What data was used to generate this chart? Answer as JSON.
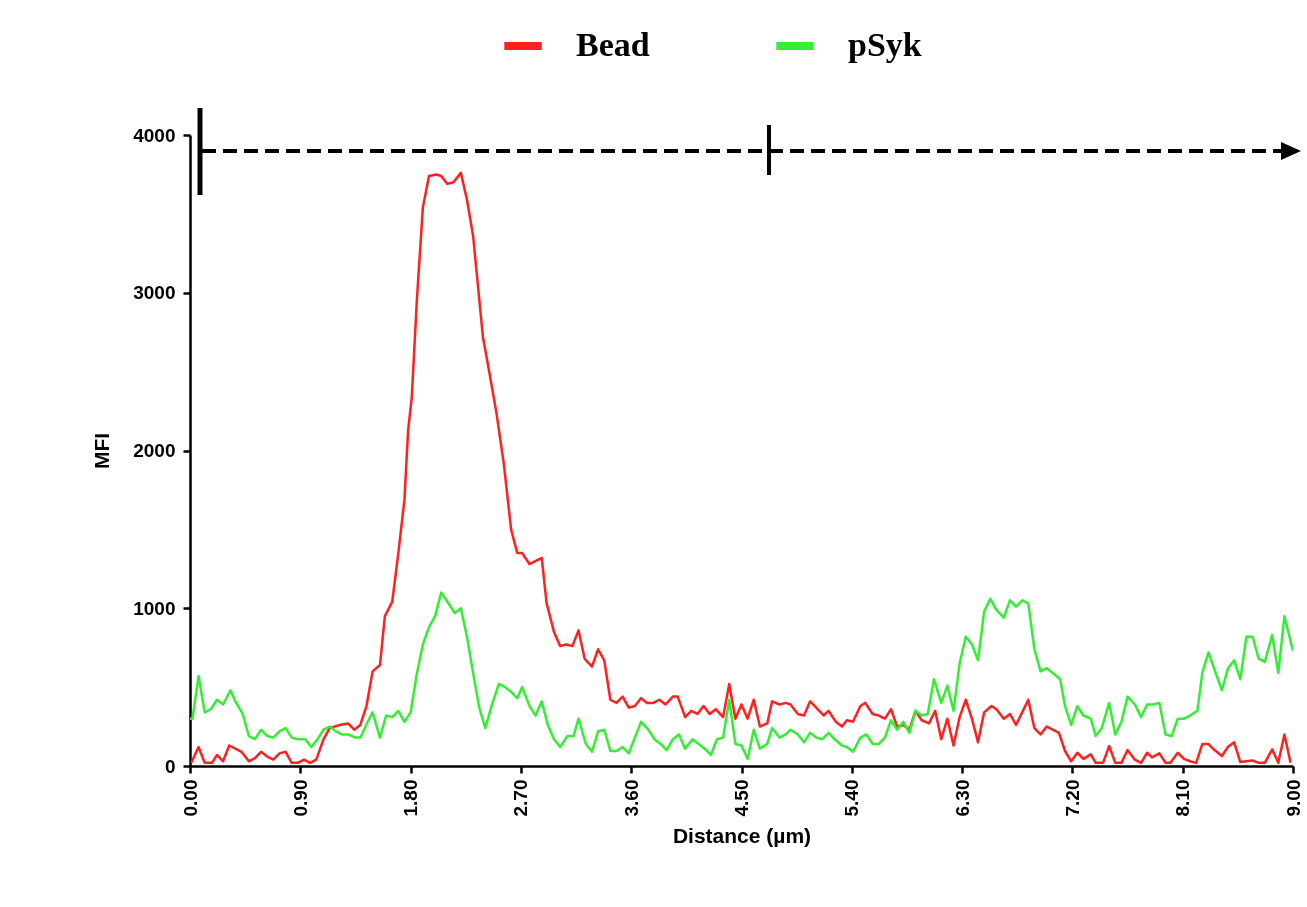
{
  "chart_data": {
    "type": "line",
    "xlabel": "Distance (µm)",
    "ylabel": "MFI",
    "legend": "top",
    "xlim": [
      0,
      9
    ],
    "ylim": [
      0,
      4000
    ],
    "xticks": [
      {
        "value": 0,
        "label": "0.00"
      },
      {
        "value": 0.9,
        "label": "0.90"
      },
      {
        "value": 1.8,
        "label": "1.80"
      },
      {
        "value": 2.7,
        "label": "2.70"
      },
      {
        "value": 3.6,
        "label": "3.60"
      },
      {
        "value": 4.5,
        "label": "4.50"
      },
      {
        "value": 5.4,
        "label": "5.40"
      },
      {
        "value": 6.3,
        "label": "6.30"
      },
      {
        "value": 7.2,
        "label": "7.20"
      },
      {
        "value": 8.1,
        "label": "8.10"
      },
      {
        "value": 9,
        "label": "9.00"
      }
    ],
    "yticks": [
      0,
      1000,
      2000,
      3000,
      4000
    ],
    "series": [
      {
        "name": "Bead",
        "color": "#ff2020",
        "x": [
          0.01,
          0.07,
          0.12,
          0.18,
          0.22,
          0.27,
          0.32,
          0.42,
          0.48,
          0.53,
          0.58,
          0.63,
          0.68,
          0.73,
          0.78,
          0.83,
          0.88,
          0.93,
          0.98,
          1.03,
          1.09,
          1.14,
          1.22,
          1.29,
          1.34,
          1.39,
          1.44,
          1.49,
          1.55,
          1.59,
          1.65,
          1.7,
          1.75,
          1.78,
          1.81,
          1.85,
          1.9,
          1.95,
          2.01,
          2.05,
          2.1,
          2.15,
          2.21,
          2.26,
          2.31,
          2.39,
          2.43,
          2.5,
          2.56,
          2.62,
          2.67,
          2.71,
          2.77,
          2.87,
          2.91,
          2.97,
          3.02,
          3.07,
          3.12,
          3.17,
          3.22,
          3.28,
          3.33,
          3.38,
          3.43,
          3.48,
          3.53,
          3.58,
          3.63,
          3.68,
          3.73,
          3.78,
          3.83,
          3.88,
          3.94,
          3.98,
          4.04,
          4.09,
          4.14,
          4.19,
          4.24,
          4.29,
          4.35,
          4.4,
          4.45,
          4.5,
          4.55,
          4.6,
          4.65,
          4.71,
          4.75,
          4.81,
          4.86,
          4.9,
          4.96,
          5.01,
          5.06,
          5.11,
          5.17,
          5.21,
          5.27,
          5.32,
          5.36,
          5.41,
          5.47,
          5.51,
          5.57,
          5.62,
          5.67,
          5.72,
          5.77,
          5.82,
          5.87,
          5.92,
          5.97,
          6.03,
          6.08,
          6.13,
          6.18,
          6.23,
          6.28,
          6.33,
          6.38,
          6.43,
          6.48,
          6.54,
          6.58,
          6.64,
          6.69,
          6.74,
          6.79,
          6.84,
          6.89,
          6.94,
          6.99,
          7.04,
          7.09,
          7.14,
          7.19,
          7.24,
          7.29,
          7.35,
          7.39,
          7.45,
          7.5,
          7.55,
          7.6,
          7.65,
          7.71,
          7.76,
          7.81,
          7.85,
          7.91,
          7.96,
          8.0,
          8.06,
          8.11,
          8.16,
          8.21,
          8.26,
          8.31,
          8.36,
          8.42,
          8.47,
          8.52,
          8.57,
          8.62,
          8.67,
          8.72,
          8.77,
          8.83,
          8.88,
          8.93,
          8.98
        ],
        "values": [
          20,
          120,
          20,
          20,
          70,
          30,
          130,
          90,
          30,
          50,
          90,
          60,
          40,
          80,
          90,
          20,
          20,
          40,
          20,
          40,
          170,
          240,
          260,
          270,
          230,
          260,
          380,
          600,
          640,
          950,
          1040,
          1350,
          1690,
          2130,
          2340,
          2940,
          3540,
          3740,
          3750,
          3740,
          3690,
          3700,
          3760,
          3590,
          3360,
          2720,
          2550,
          2240,
          1920,
          1500,
          1350,
          1350,
          1280,
          1320,
          1030,
          850,
          760,
          770,
          760,
          860,
          680,
          630,
          740,
          670,
          420,
          400,
          440,
          370,
          380,
          430,
          400,
          400,
          420,
          390,
          440,
          440,
          310,
          350,
          330,
          380,
          330,
          360,
          310,
          520,
          300,
          390,
          300,
          420,
          250,
          270,
          410,
          390,
          400,
          390,
          330,
          320,
          410,
          370,
          320,
          350,
          280,
          250,
          290,
          280,
          380,
          400,
          330,
          320,
          300,
          360,
          250,
          260,
          230,
          350,
          290,
          270,
          350,
          170,
          300,
          130,
          310,
          420,
          300,
          150,
          340,
          380,
          360,
          300,
          330,
          260,
          340,
          420,
          240,
          200,
          250,
          230,
          210,
          95,
          30,
          84,
          45,
          74,
          20,
          20,
          127,
          20,
          20,
          101,
          40,
          20,
          84,
          55,
          80,
          20,
          20,
          84,
          45,
          30,
          20,
          139,
          139,
          101,
          63,
          122,
          150,
          25,
          30,
          35,
          20,
          20,
          106,
          20,
          200,
          20
        ]
      },
      {
        "name": "pSyk",
        "color": "#33ee33",
        "x": [
          0.0,
          0.02,
          0.07,
          0.12,
          0.17,
          0.22,
          0.27,
          0.33,
          0.37,
          0.43,
          0.48,
          0.53,
          0.58,
          0.63,
          0.68,
          0.73,
          0.78,
          0.83,
          0.88,
          0.94,
          0.99,
          1.04,
          1.09,
          1.14,
          1.19,
          1.24,
          1.29,
          1.35,
          1.39,
          1.45,
          1.49,
          1.55,
          1.6,
          1.65,
          1.7,
          1.75,
          1.8,
          1.85,
          1.9,
          1.95,
          2.0,
          2.05,
          2.11,
          2.16,
          2.21,
          2.26,
          2.31,
          2.36,
          2.41,
          2.46,
          2.52,
          2.57,
          2.62,
          2.67,
          2.71,
          2.77,
          2.82,
          2.87,
          2.92,
          2.97,
          3.02,
          3.08,
          3.13,
          3.17,
          3.23,
          3.28,
          3.33,
          3.38,
          3.43,
          3.48,
          3.53,
          3.58,
          3.68,
          3.74,
          3.79,
          3.84,
          3.89,
          3.94,
          3.99,
          4.04,
          4.1,
          4.15,
          4.2,
          4.25,
          4.3,
          4.35,
          4.4,
          4.45,
          4.5,
          4.55,
          4.6,
          4.65,
          4.71,
          4.75,
          4.81,
          4.86,
          4.9,
          4.96,
          5.01,
          5.06,
          5.11,
          5.16,
          5.21,
          5.26,
          5.32,
          5.36,
          5.41,
          5.47,
          5.52,
          5.57,
          5.62,
          5.67,
          5.72,
          5.77,
          5.82,
          5.87,
          5.92,
          5.97,
          6.02,
          6.07,
          6.13,
          6.18,
          6.23,
          6.28,
          6.33,
          6.38,
          6.43,
          6.48,
          6.53,
          6.58,
          6.64,
          6.69,
          6.74,
          6.79,
          6.84,
          6.89,
          6.94,
          6.99,
          7.04,
          7.1,
          7.14,
          7.19,
          7.24,
          7.29,
          7.35,
          7.39,
          7.44,
          7.5,
          7.55,
          7.6,
          7.65,
          7.71,
          7.76,
          7.81,
          7.86,
          7.91,
          7.96,
          8.01,
          8.06,
          8.11,
          8.16,
          8.22,
          8.26,
          8.31,
          8.36,
          8.42,
          8.47,
          8.52,
          8.57,
          8.62,
          8.67,
          8.72,
          8.77,
          8.83,
          8.88,
          8.93,
          9.0
        ],
        "values": [
          300,
          300,
          570,
          340,
          360,
          420,
          390,
          480,
          410,
          330,
          190,
          170,
          230,
          190,
          180,
          220,
          240,
          180,
          170,
          170,
          120,
          170,
          230,
          250,
          220,
          200,
          200,
          180,
          180,
          280,
          340,
          180,
          320,
          310,
          350,
          280,
          340,
          580,
          770,
          880,
          950,
          1100,
          1030,
          970,
          1000,
          820,
          590,
          370,
          240,
          380,
          520,
          500,
          470,
          430,
          500,
          380,
          320,
          410,
          260,
          170,
          120,
          190,
          190,
          300,
          140,
          90,
          220,
          230,
          95,
          95,
          120,
          80,
          280,
          230,
          170,
          140,
          100,
          170,
          200,
          110,
          170,
          140,
          110,
          70,
          170,
          180,
          420,
          140,
          130,
          45,
          230,
          110,
          140,
          240,
          180,
          200,
          230,
          200,
          150,
          210,
          180,
          170,
          210,
          170,
          130,
          120,
          90,
          180,
          200,
          140,
          140,
          180,
          290,
          230,
          280,
          210,
          350,
          320,
          330,
          550,
          400,
          510,
          350,
          650,
          820,
          770,
          670,
          980,
          1060,
          990,
          940,
          1050,
          1010,
          1050,
          1030,
          740,
          600,
          620,
          590,
          550,
          380,
          260,
          380,
          320,
          300,
          190,
          240,
          400,
          200,
          280,
          440,
          390,
          310,
          390,
          390,
          400,
          200,
          190,
          300,
          300,
          320,
          350,
          590,
          720,
          610,
          480,
          620,
          670,
          550,
          820,
          820,
          680,
          660,
          830,
          590,
          950,
          730
        ]
      }
    ]
  }
}
